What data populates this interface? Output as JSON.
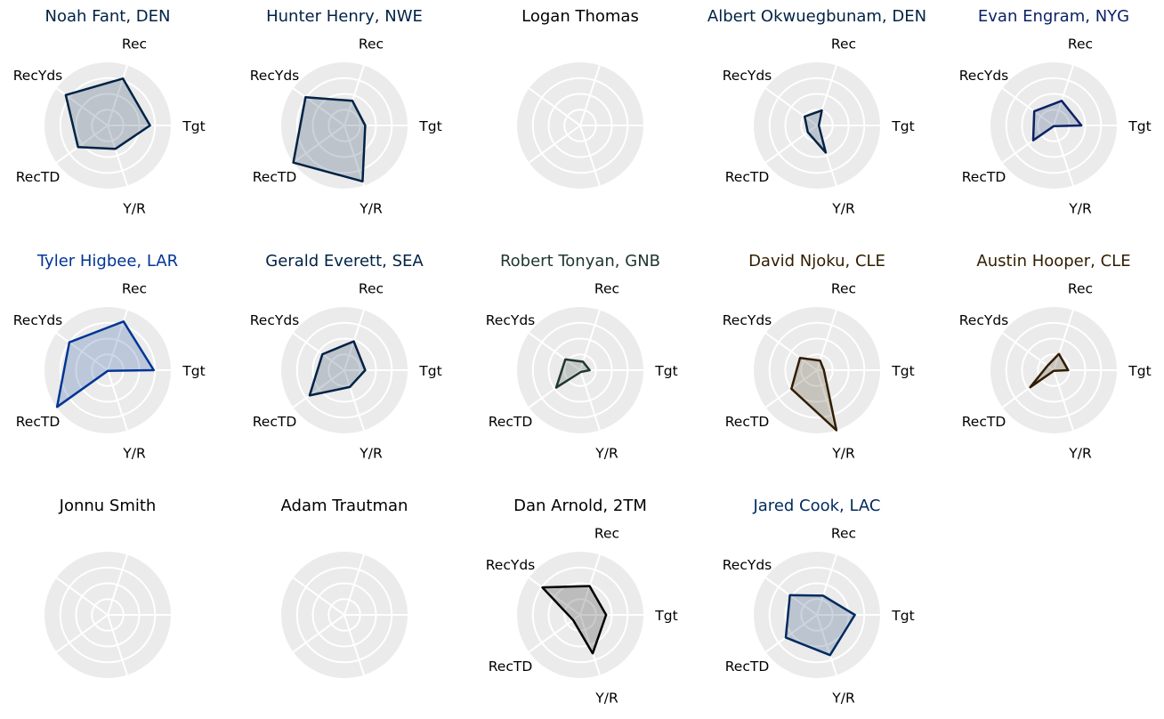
{
  "figure": {
    "panel_bg": "#ebebeb",
    "grid_color": "#ffffff",
    "fill_opacity": 0.2
  },
  "chart_data": [
    {
      "type": "radar",
      "title": "Noah Fant, DEN",
      "color": "#002244",
      "axes": [
        "Tgt",
        "Rec",
        "RecYds",
        "RecTD",
        "Y/R"
      ],
      "rmax": 1.0,
      "values": [
        0.67,
        0.78,
        0.82,
        0.58,
        0.39
      ]
    },
    {
      "type": "radar",
      "title": "Hunter Henry, NWE",
      "color": "#002244",
      "axes": [
        "Tgt",
        "Rec",
        "RecYds",
        "RecTD",
        "Y/R"
      ],
      "rmax": 1.0,
      "values": [
        0.33,
        0.41,
        0.76,
        1.0,
        0.93
      ]
    },
    {
      "type": "radar",
      "title": "Logan Thomas",
      "color": "#000000",
      "axes": [
        "Tgt",
        "Rec",
        "RecYds",
        "RecTD",
        "Y/R"
      ],
      "rmax": 1.0,
      "values": []
    },
    {
      "type": "radar",
      "title": "Albert Okwuegbunam, DEN",
      "color": "#002244",
      "axes": [
        "Tgt",
        "Rec",
        "RecYds",
        "RecTD",
        "Y/R"
      ],
      "rmax": 1.0,
      "values": [
        0.03,
        0.25,
        0.24,
        0.18,
        0.45
      ]
    },
    {
      "type": "radar",
      "title": "Evan Engram, NYG",
      "color": "#0b2265",
      "axes": [
        "Tgt",
        "Rec",
        "RecYds",
        "RecTD",
        "Y/R"
      ],
      "rmax": 1.0,
      "values": [
        0.44,
        0.41,
        0.38,
        0.4,
        0.01
      ]
    },
    {
      "type": "radar",
      "title": "Tyler Higbee, LAR",
      "color": "#003594",
      "axes": [
        "Tgt",
        "Rec",
        "RecYds",
        "RecTD",
        "Y/R"
      ],
      "rmax": 1.0,
      "values": [
        0.73,
        0.81,
        0.75,
        0.99,
        0.01
      ]
    },
    {
      "type": "radar",
      "title": "Gerald Everett, SEA",
      "color": "#002244",
      "axes": [
        "Tgt",
        "Rec",
        "RecYds",
        "RecTD",
        "Y/R"
      ],
      "rmax": 1.0,
      "values": [
        0.33,
        0.48,
        0.43,
        0.68,
        0.28
      ]
    },
    {
      "type": "radar",
      "title": "Robert Tonyan, GNB",
      "color": "#203731",
      "axes": [
        "Tgt",
        "Rec",
        "RecYds",
        "RecTD",
        "Y/R"
      ],
      "rmax": 1.0,
      "values": [
        0.15,
        0.14,
        0.29,
        0.47,
        0.03
      ]
    },
    {
      "type": "radar",
      "title": "David Njoku, CLE",
      "color": "#311d00",
      "axes": [
        "Tgt",
        "Rec",
        "RecYds",
        "RecTD",
        "Y/R"
      ],
      "rmax": 1.0,
      "values": [
        0.11,
        0.16,
        0.33,
        0.5,
        1.0
      ]
    },
    {
      "type": "radar",
      "title": "Austin Hooper, CLE",
      "color": "#311d00",
      "axes": [
        "Tgt",
        "Rec",
        "RecYds",
        "RecTD",
        "Y/R"
      ],
      "rmax": 1.0,
      "values": [
        0.23,
        0.27,
        0.12,
        0.46,
        0.01
      ]
    },
    {
      "type": "radar",
      "title": "Jonnu Smith",
      "color": "#000000",
      "axes": [
        "Tgt",
        "Rec",
        "RecYds",
        "RecTD",
        "Y/R"
      ],
      "rmax": 1.0,
      "values": []
    },
    {
      "type": "radar",
      "title": "Adam Trautman",
      "color": "#000000",
      "axes": [
        "Tgt",
        "Rec",
        "RecYds",
        "RecTD",
        "Y/R"
      ],
      "rmax": 1.0,
      "values": []
    },
    {
      "type": "radar",
      "title": "Dan Arnold, 2TM",
      "color": "#000000",
      "axes": [
        "Tgt",
        "Rec",
        "RecYds",
        "RecTD",
        "Y/R"
      ],
      "rmax": 1.0,
      "values": [
        0.41,
        0.48,
        0.74,
        0.14,
        0.64
      ]
    },
    {
      "type": "radar",
      "title": "Jared Cook, LAC",
      "color": "#002a5e",
      "axes": [
        "Tgt",
        "Rec",
        "RecYds",
        "RecTD",
        "Y/R"
      ],
      "rmax": 1.0,
      "values": [
        0.6,
        0.32,
        0.53,
        0.61,
        0.67
      ]
    }
  ]
}
